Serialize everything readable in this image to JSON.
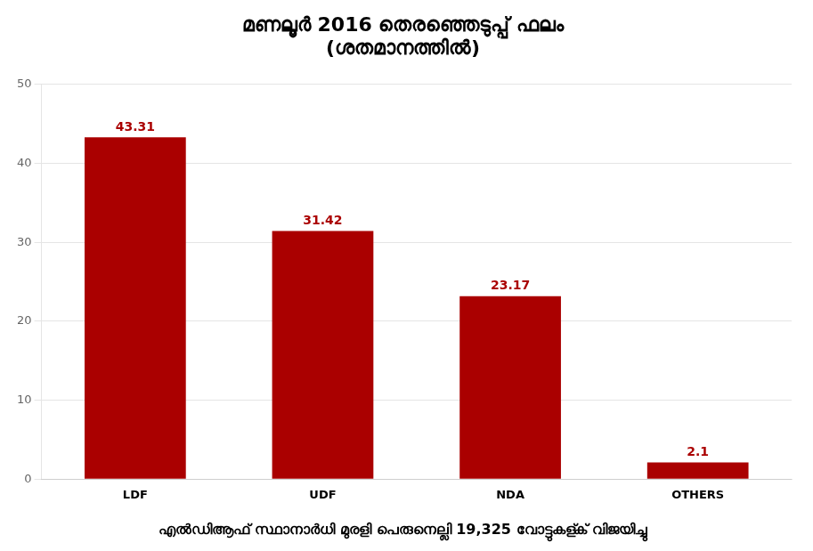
{
  "chart_data": {
    "type": "bar",
    "title": "മണലൂർ 2016 തെരഞ്ഞെടുപ്പ് ഫലം\n(ശതമാനത്തില്‍)",
    "subtitle": "എൽഡിആഫ് സ്ഥാനാർധി മുരളി പെരുനെല്ലി 19,325 വോട്ടുകള്ക് വിജയിച്ചു",
    "categories": [
      "LDF",
      "UDF",
      "NDA",
      "OTHERS"
    ],
    "values": [
      43.31,
      31.42,
      23.17,
      2.1
    ],
    "color": "#aa0000",
    "data_labels": true,
    "ylim": [
      0,
      50
    ],
    "yticks": [
      0,
      10,
      20,
      30,
      40,
      50
    ],
    "grid": true
  }
}
